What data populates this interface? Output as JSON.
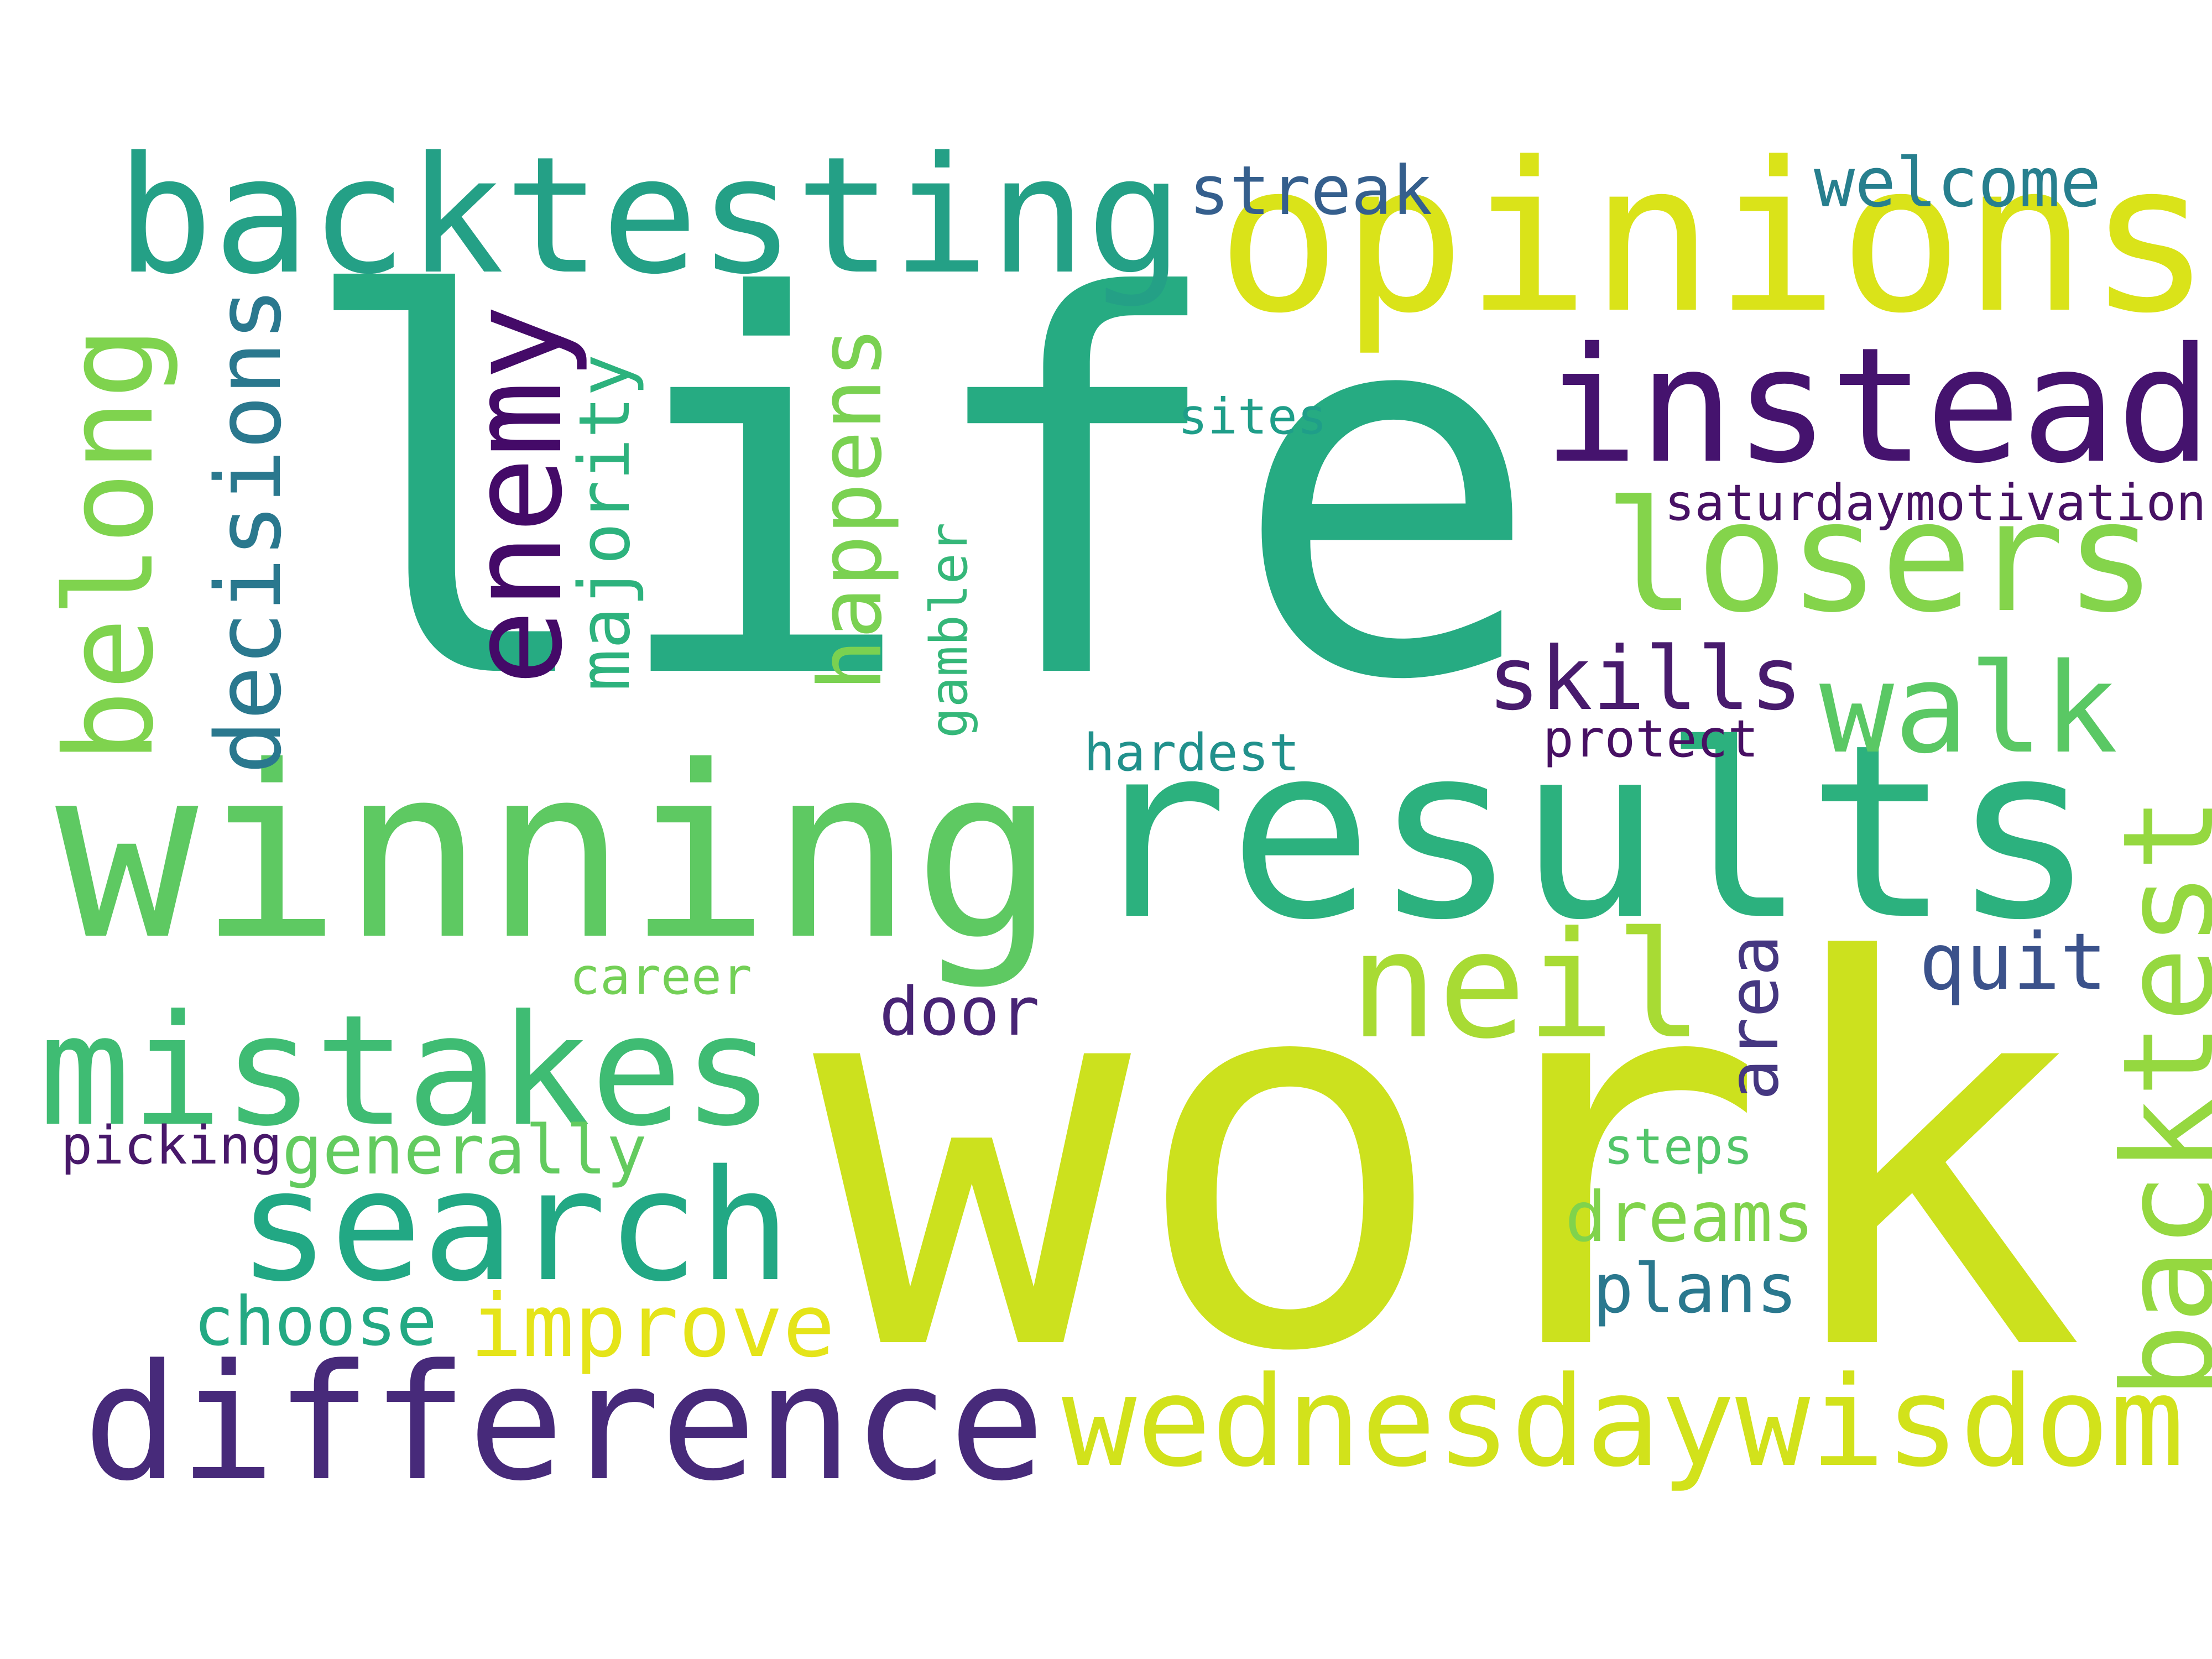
{
  "words": [
    {
      "text": "life",
      "color": "#26ab82"
    },
    {
      "text": "work",
      "color": "#cce11e"
    },
    {
      "text": "winning",
      "color": "#5ec962"
    },
    {
      "text": "results",
      "color": "#2cb17e"
    },
    {
      "text": "opinions",
      "color": "#dae319"
    },
    {
      "text": "backtesting",
      "color": "#24a086"
    },
    {
      "text": "instead",
      "color": "#45136e"
    },
    {
      "text": "difference",
      "color": "#472a7a"
    },
    {
      "text": "wednesdaywisdom",
      "color": "#d2e21b"
    },
    {
      "text": "losers",
      "color": "#84d44b"
    },
    {
      "text": "mistakes",
      "color": "#3fbc73"
    },
    {
      "text": "search",
      "color": "#22a884"
    },
    {
      "text": "neil",
      "color": "#a8db34"
    },
    {
      "text": "backtest",
      "color": "#95d840"
    },
    {
      "text": "walk",
      "color": "#5ac864"
    },
    {
      "text": "enemy",
      "color": "#440a68"
    },
    {
      "text": "belong",
      "color": "#7fd34e"
    },
    {
      "text": "decisions",
      "color": "#2a788e"
    },
    {
      "text": "happens",
      "color": "#7ad151"
    },
    {
      "text": "majority",
      "color": "#2db27d"
    },
    {
      "text": "improve",
      "color": "#e5e419"
    },
    {
      "text": "skills",
      "color": "#481b6d"
    },
    {
      "text": "quit",
      "color": "#3b528b"
    },
    {
      "text": "generally",
      "color": "#63cb5f"
    },
    {
      "text": "dreams",
      "color": "#80d34c"
    },
    {
      "text": "plans",
      "color": "#2a788e"
    },
    {
      "text": "choose",
      "color": "#23a983"
    },
    {
      "text": "door",
      "color": "#482475"
    },
    {
      "text": "area",
      "color": "#453781"
    },
    {
      "text": "streak",
      "color": "#355f8d"
    },
    {
      "text": "welcome",
      "color": "#277f8e"
    },
    {
      "text": "saturdaymotivation",
      "color": "#471164"
    },
    {
      "text": "hardest",
      "color": "#21918c"
    },
    {
      "text": "protect",
      "color": "#471063"
    },
    {
      "text": "gambler",
      "color": "#35b779"
    },
    {
      "text": "sites",
      "color": "#1f9e89"
    },
    {
      "text": "career",
      "color": "#73d056"
    },
    {
      "text": "picking",
      "color": "#48186a"
    },
    {
      "text": "steps",
      "color": "#52c569"
    }
  ]
}
